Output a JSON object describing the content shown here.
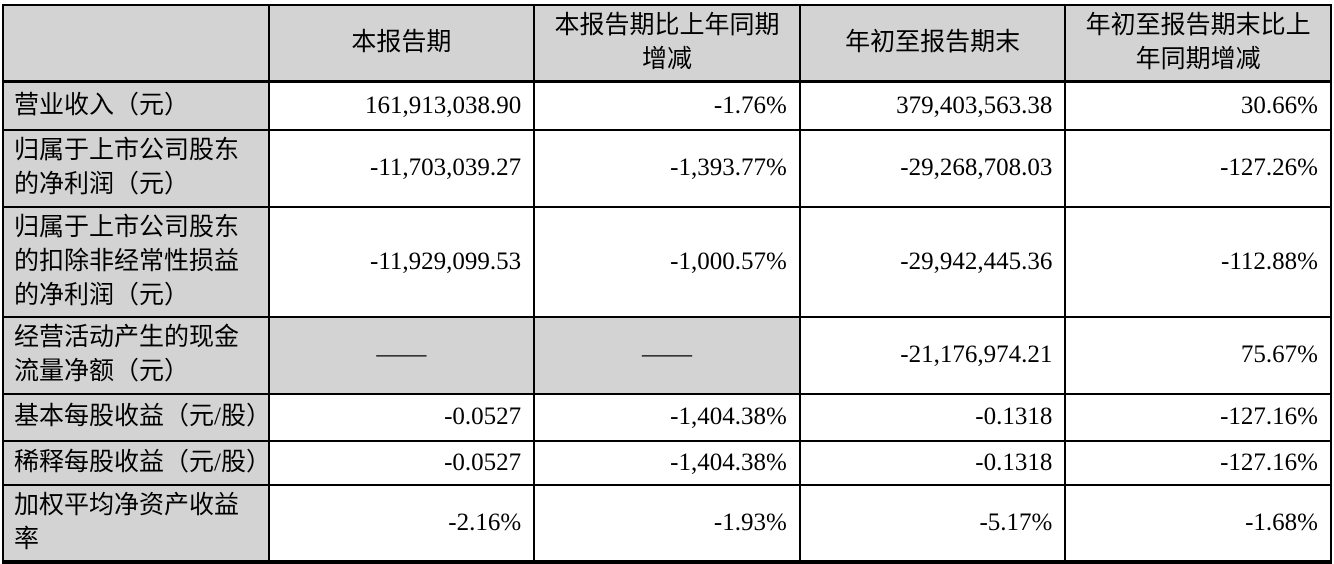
{
  "table": {
    "columns": [
      "",
      "本报告期",
      "本报告期比上年同期增减",
      "年初至报告期末",
      "年初至报告期末比上年同期增减"
    ],
    "rows": [
      {
        "label": "营业收入（元）",
        "values": [
          "161,913,038.90",
          "-1.76%",
          "379,403,563.38",
          "30.66%"
        ]
      },
      {
        "label": "归属于上市公司股东的净利润（元）",
        "values": [
          "-11,703,039.27",
          "-1,393.77%",
          "-29,268,708.03",
          "-127.26%"
        ]
      },
      {
        "label": "归属于上市公司股东的扣除非经常性损益的净利润（元）",
        "values": [
          "-11,929,099.53",
          "-1,000.57%",
          "-29,942,445.36",
          "-112.88%"
        ]
      },
      {
        "label": "经营活动产生的现金流量净额（元）",
        "values": [
          "——",
          "——",
          "-21,176,974.21",
          "75.67%"
        ],
        "placeholder_cols": [
          0,
          1
        ]
      },
      {
        "label": "基本每股收益（元/股）",
        "values": [
          "-0.0527",
          "-1,404.38%",
          "-0.1318",
          "-127.16%"
        ]
      },
      {
        "label": "稀释每股收益（元/股）",
        "values": [
          "-0.0527",
          "-1,404.38%",
          "-0.1318",
          "-127.16%"
        ]
      },
      {
        "label": "加权平均净资产收益率",
        "values": [
          "-2.16%",
          "-1.93%",
          "-5.17%",
          "-1.68%"
        ]
      }
    ]
  },
  "colors": {
    "shaded_bg": "#d3d3d3",
    "data_bg": "#ffffff",
    "border": "#000000",
    "text": "#000000"
  }
}
